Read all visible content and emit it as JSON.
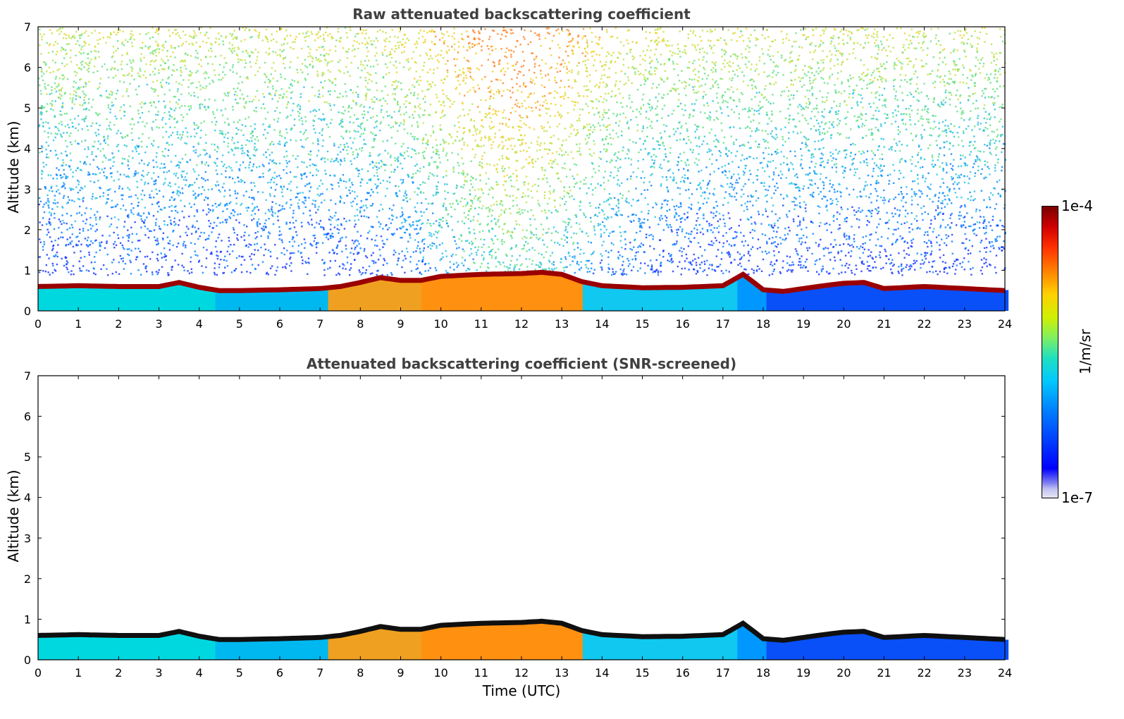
{
  "chart_data": [
    {
      "type": "heatmap",
      "title": "Raw attenuated backscattering coefficient",
      "xlabel": "",
      "ylabel": "Altitude (km)",
      "xlim": [
        0,
        24
      ],
      "ylim": [
        0,
        7
      ],
      "xticks": [
        "0",
        "1",
        "2",
        "3",
        "4",
        "5",
        "6",
        "7",
        "8",
        "9",
        "10",
        "11",
        "12",
        "13",
        "14",
        "15",
        "16",
        "17",
        "18",
        "19",
        "20",
        "21",
        "22",
        "23",
        "24"
      ],
      "yticks": [
        "0",
        "1",
        "2",
        "3",
        "4",
        "5",
        "6",
        "7"
      ],
      "layer_top_km": [
        [
          0,
          0.6
        ],
        [
          1,
          0.62
        ],
        [
          2,
          0.6
        ],
        [
          3,
          0.6
        ],
        [
          3.5,
          0.7
        ],
        [
          4,
          0.58
        ],
        [
          4.5,
          0.5
        ],
        [
          5,
          0.5
        ],
        [
          6,
          0.52
        ],
        [
          7,
          0.55
        ],
        [
          7.5,
          0.6
        ],
        [
          8,
          0.7
        ],
        [
          8.5,
          0.82
        ],
        [
          9,
          0.75
        ],
        [
          9.5,
          0.75
        ],
        [
          10,
          0.85
        ],
        [
          11,
          0.9
        ],
        [
          12,
          0.92
        ],
        [
          12.5,
          0.95
        ],
        [
          13,
          0.9
        ],
        [
          13.5,
          0.72
        ],
        [
          14,
          0.62
        ],
        [
          15,
          0.57
        ],
        [
          16,
          0.58
        ],
        [
          17,
          0.62
        ],
        [
          17.5,
          0.9
        ],
        [
          17.7,
          0.75
        ],
        [
          18,
          0.52
        ],
        [
          18.5,
          0.48
        ],
        [
          19,
          0.55
        ],
        [
          19.5,
          0.62
        ],
        [
          20,
          0.68
        ],
        [
          20.5,
          0.7
        ],
        [
          21,
          0.55
        ],
        [
          22,
          0.6
        ],
        [
          23,
          0.55
        ],
        [
          24,
          0.5
        ]
      ],
      "noise": "speckled noise increasing with altitude, enhanced near 10-13 UTC (daylight)"
    },
    {
      "type": "heatmap",
      "title": "Attenuated backscattering coefficient (SNR-screened)",
      "xlabel": "Time (UTC)",
      "ylabel": "Altitude (km)",
      "xlim": [
        0,
        24
      ],
      "ylim": [
        0,
        7
      ],
      "xticks": [
        "0",
        "1",
        "2",
        "3",
        "4",
        "5",
        "6",
        "7",
        "8",
        "9",
        "10",
        "11",
        "12",
        "13",
        "14",
        "15",
        "16",
        "17",
        "18",
        "19",
        "20",
        "21",
        "22",
        "23",
        "24"
      ],
      "yticks": [
        "0",
        "1",
        "2",
        "3",
        "4",
        "5",
        "6",
        "7"
      ],
      "layer_top_km": [
        [
          0,
          0.6
        ],
        [
          1,
          0.62
        ],
        [
          2,
          0.6
        ],
        [
          3,
          0.6
        ],
        [
          3.5,
          0.7
        ],
        [
          4,
          0.58
        ],
        [
          4.5,
          0.5
        ],
        [
          5,
          0.5
        ],
        [
          6,
          0.52
        ],
        [
          7,
          0.55
        ],
        [
          7.5,
          0.6
        ],
        [
          8,
          0.7
        ],
        [
          8.5,
          0.82
        ],
        [
          9,
          0.75
        ],
        [
          9.5,
          0.75
        ],
        [
          10,
          0.85
        ],
        [
          11,
          0.9
        ],
        [
          12,
          0.92
        ],
        [
          12.5,
          0.95
        ],
        [
          13,
          0.9
        ],
        [
          13.5,
          0.72
        ],
        [
          14,
          0.62
        ],
        [
          15,
          0.57
        ],
        [
          16,
          0.58
        ],
        [
          17,
          0.62
        ],
        [
          17.5,
          0.9
        ],
        [
          17.7,
          0.75
        ],
        [
          18,
          0.52
        ],
        [
          18.5,
          0.48
        ],
        [
          19,
          0.55
        ],
        [
          19.5,
          0.62
        ],
        [
          20,
          0.68
        ],
        [
          20.5,
          0.7
        ],
        [
          21,
          0.55
        ],
        [
          22,
          0.6
        ],
        [
          23,
          0.55
        ],
        [
          24,
          0.5
        ]
      ],
      "noise": "screened (no noise above layer)"
    }
  ],
  "colorbar": {
    "label": "1/m/sr",
    "max_label": "1e-4",
    "min_label": "1e-7",
    "scale": "log",
    "range": [
      1e-07,
      0.0001
    ]
  }
}
